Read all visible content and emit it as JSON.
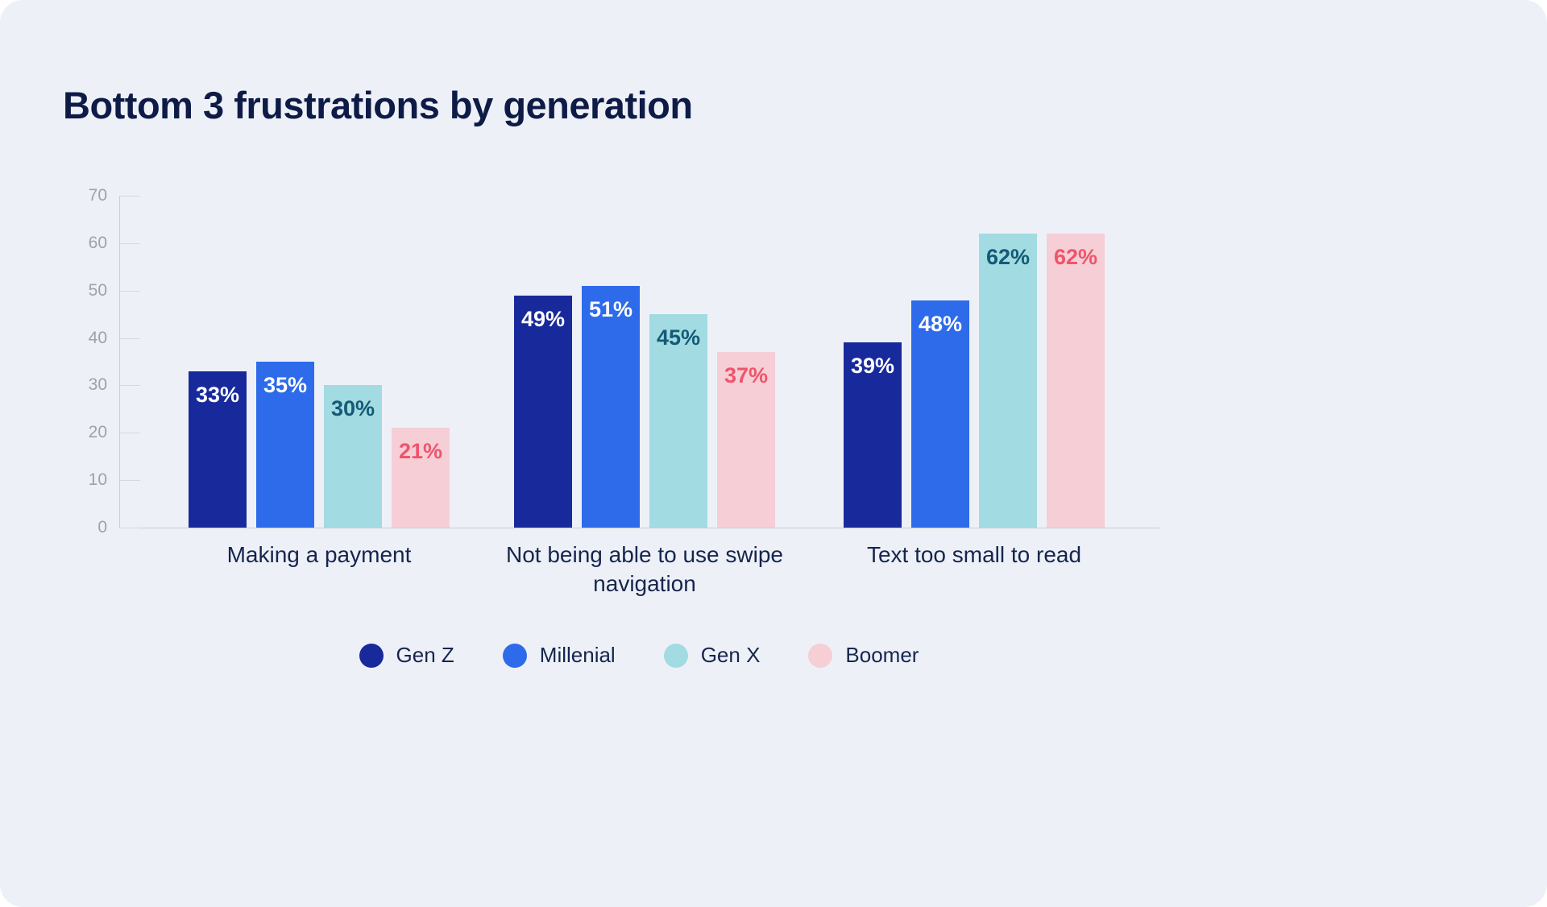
{
  "title": "Bottom 3 frustrations by generation",
  "chart_data": {
    "type": "bar",
    "title": "Bottom 3 frustrations by generation",
    "categories": [
      "Making a payment",
      "Not being able to use swipe navigation",
      "Text too small to read"
    ],
    "series": [
      {
        "name": "Gen Z",
        "color": "#182a9b",
        "label_color": "#ffffff",
        "values": [
          33,
          49,
          39
        ]
      },
      {
        "name": "Millenial",
        "color": "#2e6bea",
        "label_color": "#ffffff",
        "values": [
          35,
          51,
          48
        ]
      },
      {
        "name": "Gen X",
        "color": "#a2dbe1",
        "label_color": "#145a77",
        "values": [
          30,
          45,
          62
        ]
      },
      {
        "name": "Boomer",
        "color": "#f5ced6",
        "label_color": "#f0546b",
        "values": [
          21,
          37,
          62
        ]
      }
    ],
    "value_suffix": "%",
    "ylim": [
      0,
      70
    ],
    "yticks": [
      0,
      10,
      20,
      30,
      40,
      50,
      60,
      70
    ],
    "xlabel": "",
    "ylabel": "",
    "grid": "ticks-only",
    "legend_position": "bottom"
  }
}
